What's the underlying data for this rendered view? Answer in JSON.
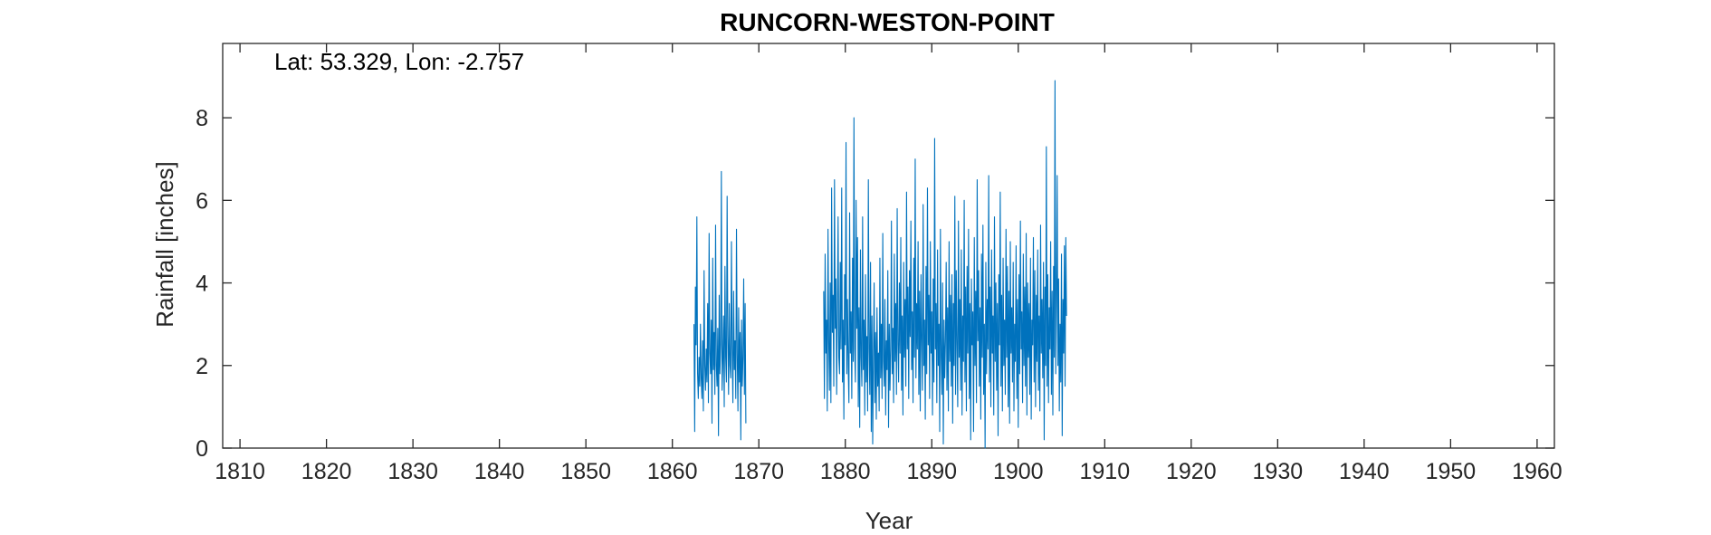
{
  "chart_data": {
    "type": "line",
    "title": "RUNCORN-WESTON-POINT",
    "xlabel": "Year",
    "ylabel": "Rainfall [inches]",
    "annotation": "Lat: 53.329, Lon: -2.757",
    "xlim": [
      1808,
      1962
    ],
    "ylim": [
      0,
      9.8
    ],
    "xticks": [
      1810,
      1820,
      1830,
      1840,
      1850,
      1860,
      1870,
      1880,
      1890,
      1900,
      1910,
      1920,
      1930,
      1940,
      1950,
      1960
    ],
    "yticks": [
      0,
      2,
      4,
      6,
      8
    ],
    "grid": false,
    "series": [
      {
        "color": "#0072BD",
        "segments": [
          {
            "start": 1862.5,
            "step": 0.0833333,
            "values": [
              3.0,
              0.4,
              3.9,
              2.5,
              5.6,
              1.8,
              1.2,
              2.2,
              1.5,
              3.0,
              1.7,
              1.2,
              2.6,
              0.9,
              4.3,
              2.0,
              1.4,
              2.4,
              1.6,
              3.5,
              1.1,
              5.2,
              2.3,
              1.8,
              3.1,
              0.6,
              4.6,
              1.9,
              2.8,
              1.3,
              5.4,
              2.0,
              1.5,
              2.9,
              0.3,
              3.7,
              1.8,
              2.5,
              6.7,
              1.4,
              2.1,
              3.2,
              1.0,
              4.4,
              2.2,
              1.6,
              6.1,
              2.7,
              1.3,
              3.5,
              2.0,
              1.7,
              5.0,
              2.4,
              1.1,
              3.8,
              1.9,
              2.6,
              1.2,
              5.3,
              2.3,
              0.9,
              3.4,
              1.6,
              2.8,
              0.2,
              3.1,
              1.5,
              2.2,
              4.1,
              1.3,
              3.5,
              0.6
            ]
          },
          {
            "start": 1877.5,
            "step": 0.0833333,
            "values": [
              3.8,
              1.2,
              4.7,
              2.3,
              3.1,
              0.9,
              5.3,
              2.6,
              1.4,
              4.0,
              1.1,
              6.3,
              2.8,
              3.7,
              1.5,
              6.5,
              2.9,
              4.1,
              1.3,
              3.3,
              5.6,
              2.2,
              1.8,
              4.5,
              2.4,
              6.3,
              1.6,
              3.1,
              0.7,
              4.2,
              2.5,
              7.4,
              1.8,
              3.6,
              2.0,
              1.1,
              5.7,
              2.3,
              3.3,
              1.2,
              4.6,
              2.1,
              8.0,
              2.4,
              1.6,
              6.0,
              2.9,
              5.1,
              1.0,
              3.4,
              0.5,
              4.8,
              2.2,
              1.5,
              5.6,
              1.9,
              3.1,
              0.8,
              4.2,
              1.6,
              2.7,
              0.9,
              6.5,
              2.4,
              1.3,
              4.5,
              0.4,
              3.2,
              0.1,
              2.2,
              4.0,
              1.1,
              2.8,
              0.7,
              3.4,
              1.5,
              2.3,
              0.9,
              4.6,
              1.7,
              3.0,
              1.2,
              5.2,
              2.1,
              1.5,
              3.6,
              0.8,
              2.6,
              1.9,
              4.3,
              0.5,
              3.0,
              1.4,
              2.4,
              5.5,
              1.8,
              2.9,
              1.1,
              4.7,
              2.1,
              3.5,
              1.3,
              5.8,
              2.5,
              1.6,
              4.0,
              2.3,
              5.1,
              1.4,
              3.2,
              0.8,
              4.5,
              2.2,
              3.6,
              1.5,
              6.2,
              2.4,
              3.9,
              1.2,
              4.3,
              2.7,
              5.5,
              1.9,
              3.3,
              1.1,
              4.6,
              2.2,
              7.0,
              1.7,
              3.5,
              2.4,
              5.0,
              1.3,
              3.8,
              0.9,
              4.2,
              2.6,
              1.4,
              5.9,
              2.0,
              3.1,
              0.7,
              4.4,
              1.8,
              6.3,
              2.5,
              3.7,
              1.2,
              5.0,
              2.3,
              3.3,
              0.8,
              4.1,
              1.6,
              7.5,
              2.4,
              3.5,
              1.1,
              4.8,
              2.0,
              3.0,
              0.4,
              5.3,
              2.2,
              1.3,
              4.0,
              0.1,
              3.1,
              1.7,
              2.6,
              4.5,
              1.4,
              3.4,
              0.9,
              5.0,
              2.1,
              3.7,
              1.5,
              4.2,
              0.6,
              3.5,
              2.0,
              6.1,
              1.3,
              4.3,
              2.5,
              1.0,
              5.5,
              2.2,
              3.6,
              1.4,
              4.8,
              0.8,
              3.2,
              2.1,
              6.0,
              1.6,
              3.9,
              0.9,
              4.4,
              2.3,
              5.3,
              1.2,
              3.5,
              0.2,
              4.1,
              2.5,
              3.3,
              0.4,
              5.1,
              2.0,
              3.8,
              1.1,
              6.5,
              2.6,
              4.3,
              1.5,
              3.4,
              0.7,
              4.7,
              2.2,
              5.4,
              1.3,
              3.0,
              0.0,
              4.5,
              1.8,
              3.6,
              2.4,
              6.6,
              1.6,
              3.9,
              1.0,
              4.8,
              2.3,
              3.2,
              0.8,
              5.6,
              2.1,
              4.0,
              1.4,
              3.5,
              0.3,
              4.2,
              2.5,
              6.2,
              1.5,
              3.7,
              0.9,
              4.6,
              2.0,
              3.1,
              1.3,
              5.3,
              2.2,
              4.4,
              1.0,
              3.8,
              0.6,
              5.0,
              2.3,
              3.4,
              1.6,
              4.5,
              0.9,
              3.0,
              2.1,
              4.9,
              1.2,
              3.6,
              0.5,
              4.2,
              1.8,
              5.5,
              2.4,
              3.3,
              1.1,
              4.7,
              2.0,
              3.9,
              1.5,
              5.2,
              0.8,
              4.0,
              2.2,
              3.5,
              1.3,
              4.6,
              0.7,
              3.1,
              2.5,
              5.1,
              1.6,
              4.3,
              1.0,
              3.7,
              2.1,
              4.8,
              1.4,
              3.2,
              0.9,
              5.4,
              2.3,
              3.6,
              1.7,
              4.5,
              0.2,
              3.9,
              2.0,
              7.3,
              1.5,
              4.2,
              1.1,
              3.4,
              2.4,
              5.0,
              1.3,
              3.8,
              0.8,
              4.4,
              2.2,
              8.9,
              1.8,
              3.5,
              6.6,
              2.0,
              4.1,
              0.9,
              3.0,
              1.6,
              4.7,
              0.3,
              3.6,
              2.3,
              4.9,
              1.5,
              5.1,
              3.2
            ]
          }
        ]
      }
    ]
  }
}
